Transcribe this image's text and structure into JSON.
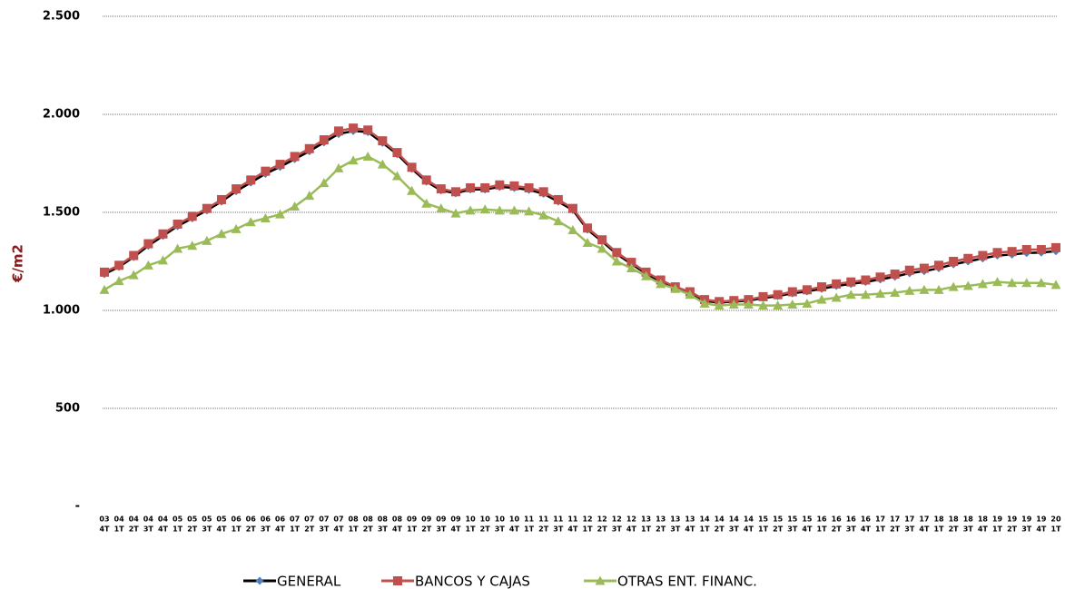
{
  "chart_data": {
    "type": "line",
    "y_label": "€/m2",
    "categories": [
      [
        "03",
        "4T"
      ],
      [
        "04",
        "1T"
      ],
      [
        "04",
        "2T"
      ],
      [
        "04",
        "3T"
      ],
      [
        "04",
        "4T"
      ],
      [
        "05",
        "1T"
      ],
      [
        "05",
        "2T"
      ],
      [
        "05",
        "3T"
      ],
      [
        "05",
        "4T"
      ],
      [
        "06",
        "1T"
      ],
      [
        "06",
        "2T"
      ],
      [
        "06",
        "3T"
      ],
      [
        "06",
        "4T"
      ],
      [
        "07",
        "1T"
      ],
      [
        "07",
        "2T"
      ],
      [
        "07",
        "3T"
      ],
      [
        "07",
        "4T"
      ],
      [
        "08",
        "1T"
      ],
      [
        "08",
        "2T"
      ],
      [
        "08",
        "3T"
      ],
      [
        "08",
        "4T"
      ],
      [
        "09",
        "1T"
      ],
      [
        "09",
        "2T"
      ],
      [
        "09",
        "3T"
      ],
      [
        "09",
        "4T"
      ],
      [
        "10",
        "1T"
      ],
      [
        "10",
        "2T"
      ],
      [
        "10",
        "3T"
      ],
      [
        "10",
        "4T"
      ],
      [
        "11",
        "1T"
      ],
      [
        "11",
        "2T"
      ],
      [
        "11",
        "3T"
      ],
      [
        "11",
        "4T"
      ],
      [
        "12",
        "1T"
      ],
      [
        "12",
        "2T"
      ],
      [
        "12",
        "3T"
      ],
      [
        "12",
        "4T"
      ],
      [
        "13",
        "1T"
      ],
      [
        "13",
        "2T"
      ],
      [
        "13",
        "3T"
      ],
      [
        "13",
        "4T"
      ],
      [
        "14",
        "1T"
      ],
      [
        "14",
        "2T"
      ],
      [
        "14",
        "3T"
      ],
      [
        "14",
        "4T"
      ],
      [
        "15",
        "1T"
      ],
      [
        "15",
        "2T"
      ],
      [
        "15",
        "3T"
      ],
      [
        "15",
        "4T"
      ],
      [
        "16",
        "1T"
      ],
      [
        "16",
        "2T"
      ],
      [
        "16",
        "3T"
      ],
      [
        "16",
        "4T"
      ],
      [
        "17",
        "1T"
      ],
      [
        "17",
        "2T"
      ],
      [
        "17",
        "3T"
      ],
      [
        "17",
        "4T"
      ],
      [
        "18",
        "1T"
      ],
      [
        "18",
        "2T"
      ],
      [
        "18",
        "3T"
      ],
      [
        "18",
        "4T"
      ],
      [
        "19",
        "1T"
      ],
      [
        "19",
        "2T"
      ],
      [
        "19",
        "3T"
      ],
      [
        "19",
        "4T"
      ],
      [
        "20",
        "1T"
      ]
    ],
    "series": [
      {
        "name": "GENERAL",
        "color": "#4f81bd",
        "line_color": "#000000",
        "marker": "diamond",
        "values": [
          1185,
          1222,
          1272,
          1330,
          1380,
          1430,
          1470,
          1510,
          1555,
          1608,
          1652,
          1697,
          1732,
          1772,
          1812,
          1857,
          1900,
          1915,
          1910,
          1855,
          1797,
          1722,
          1657,
          1612,
          1598,
          1617,
          1617,
          1630,
          1625,
          1615,
          1595,
          1555,
          1512,
          1412,
          1352,
          1287,
          1237,
          1187,
          1147,
          1112,
          1088,
          1048,
          1040,
          1045,
          1050,
          1063,
          1073,
          1087,
          1097,
          1110,
          1125,
          1135,
          1145,
          1158,
          1172,
          1190,
          1200,
          1215,
          1235,
          1250,
          1265,
          1280,
          1285,
          1293,
          1295,
          1302
        ]
      },
      {
        "name": "BANCOS Y CAJAS",
        "color": "#c0504d",
        "line_color": "#c0504d",
        "marker": "square",
        "values": [
          1195,
          1230,
          1280,
          1340,
          1390,
          1440,
          1480,
          1520,
          1565,
          1620,
          1665,
          1710,
          1745,
          1785,
          1825,
          1870,
          1915,
          1930,
          1920,
          1865,
          1805,
          1730,
          1665,
          1620,
          1605,
          1625,
          1625,
          1640,
          1635,
          1625,
          1605,
          1565,
          1520,
          1420,
          1360,
          1295,
          1245,
          1195,
          1155,
          1120,
          1095,
          1055,
          1045,
          1050,
          1055,
          1070,
          1080,
          1095,
          1105,
          1120,
          1135,
          1145,
          1155,
          1170,
          1185,
          1205,
          1215,
          1230,
          1250,
          1265,
          1280,
          1295,
          1300,
          1310,
          1310,
          1320
        ]
      },
      {
        "name": "OTRAS ENT. FINANC.",
        "color": "#9bbb59",
        "line_color": "#9bbb59",
        "marker": "triangle",
        "values": [
          1105,
          1150,
          1180,
          1230,
          1255,
          1315,
          1330,
          1355,
          1390,
          1415,
          1450,
          1470,
          1490,
          1530,
          1585,
          1650,
          1725,
          1765,
          1785,
          1745,
          1685,
          1610,
          1545,
          1520,
          1495,
          1510,
          1515,
          1510,
          1510,
          1505,
          1485,
          1455,
          1410,
          1345,
          1315,
          1250,
          1215,
          1175,
          1135,
          1110,
          1080,
          1035,
          1025,
          1030,
          1030,
          1025,
          1025,
          1030,
          1035,
          1055,
          1065,
          1080,
          1080,
          1085,
          1090,
          1100,
          1105,
          1105,
          1120,
          1125,
          1135,
          1145,
          1140,
          1140,
          1140,
          1130
        ]
      }
    ],
    "ylim": [
      0,
      2500
    ],
    "yticks": [
      {
        "value": 0,
        "label": "-"
      },
      500,
      {
        "value": 1000,
        "label": "1.000"
      },
      {
        "value": 1500,
        "label": "1.500"
      },
      {
        "value": 2000,
        "label": "2.000"
      },
      {
        "value": 2500,
        "label": "2.500"
      }
    ],
    "grid": true,
    "grid_color": "#c0504d",
    "legend": "bottom"
  }
}
